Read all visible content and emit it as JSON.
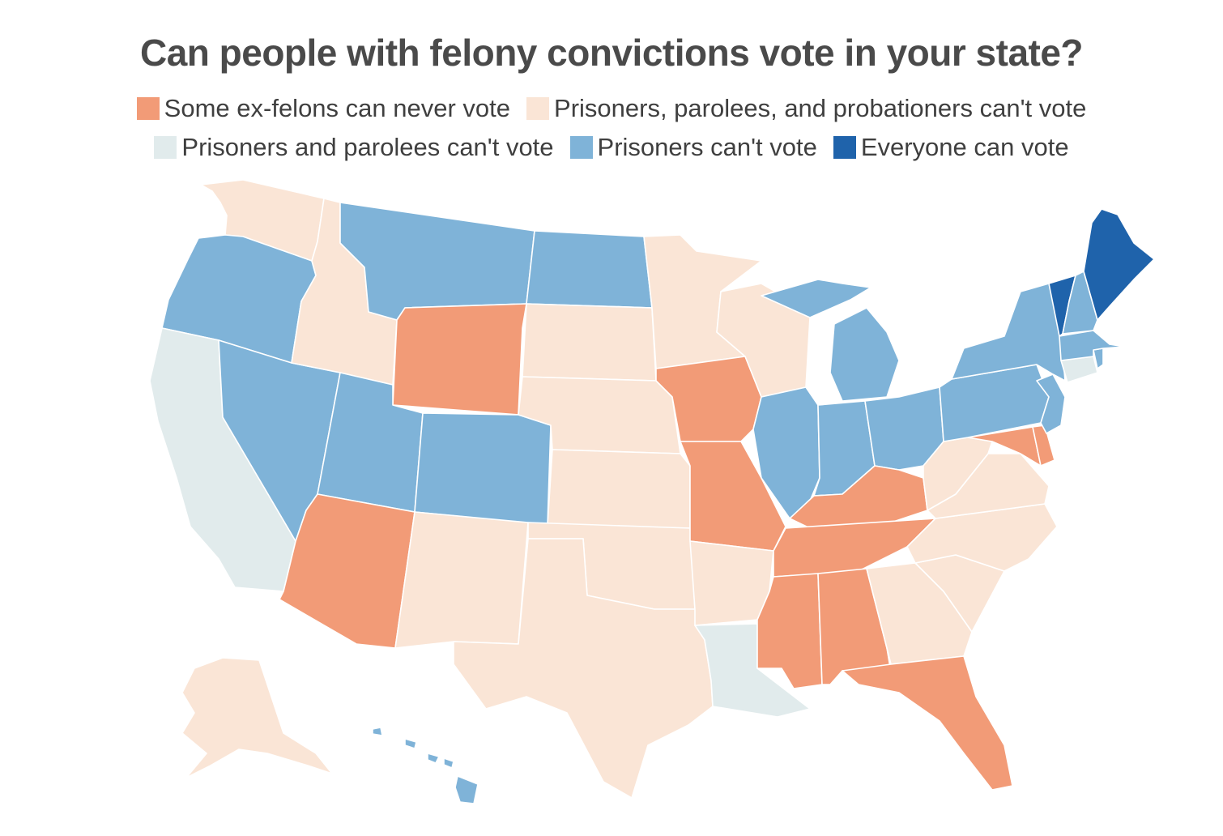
{
  "title": "Can people with felony convictions vote in your state?",
  "legend": [
    {
      "key": "never",
      "label": "Some ex-felons can never vote",
      "color": "#f29b77"
    },
    {
      "key": "ppp",
      "label": "Prisoners, parolees, and probationers can't vote",
      "color": "#fae5d6"
    },
    {
      "key": "pp",
      "label": "Prisoners and parolees can't vote",
      "color": "#e1ebec"
    },
    {
      "key": "prison",
      "label": "Prisoners can't vote",
      "color": "#7fb3d8"
    },
    {
      "key": "all",
      "label": "Everyone can vote",
      "color": "#1f63ab"
    }
  ],
  "states": {
    "WA": "ppp",
    "OR": "prison",
    "CA": "pp",
    "NV": "prison",
    "ID": "ppp",
    "MT": "prison",
    "WY": "never",
    "UT": "prison",
    "AZ": "never",
    "CO": "prison",
    "NM": "ppp",
    "ND": "prison",
    "SD": "ppp",
    "NE": "ppp",
    "KS": "ppp",
    "OK": "ppp",
    "TX": "ppp",
    "MN": "ppp",
    "IA": "never",
    "MO": "never",
    "AR": "ppp",
    "LA": "pp",
    "WI": "ppp",
    "IL": "prison",
    "MI": "prison",
    "IN": "prison",
    "OH": "prison",
    "KY": "never",
    "TN": "never",
    "MS": "never",
    "AL": "never",
    "GA": "ppp",
    "FL": "never",
    "SC": "ppp",
    "NC": "ppp",
    "VA": "ppp",
    "WV": "ppp",
    "MD": "never",
    "DE": "never",
    "PA": "prison",
    "NJ": "prison",
    "NY": "prison",
    "CT": "pp",
    "RI": "prison",
    "MA": "prison",
    "VT": "all",
    "NH": "prison",
    "ME": "all",
    "AK": "ppp",
    "HI": "prison"
  }
}
